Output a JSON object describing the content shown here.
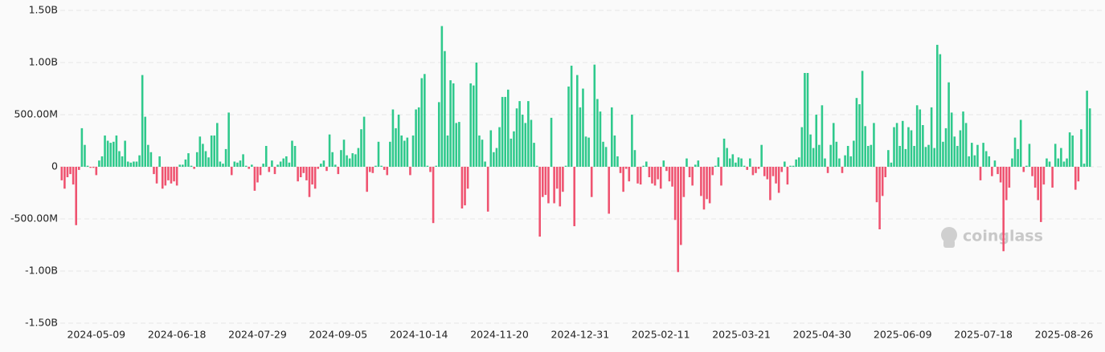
{
  "chart_data": {
    "type": "bar",
    "watermark": "coinglass",
    "positive_color": "#2fc98c",
    "negative_color": "#ef5370",
    "ylim": [
      -1500,
      1500
    ],
    "yticks": [
      {
        "value": -1500,
        "label": "-1.50B"
      },
      {
        "value": -1000,
        "label": "-1.00B"
      },
      {
        "value": -500,
        "label": "-500.00M"
      },
      0,
      {
        "value": 500,
        "label": "500.00M"
      },
      {
        "value": 1000,
        "label": "1.00B"
      },
      {
        "value": 1500,
        "label": "1.50B"
      }
    ],
    "grid": true,
    "categories": [
      null,
      null,
      null,
      null,
      null,
      null,
      null,
      null,
      null,
      null,
      null,
      null,
      "2024-05-09",
      null,
      null,
      null,
      null,
      null,
      null,
      null,
      null,
      null,
      null,
      null,
      null,
      null,
      null,
      null,
      null,
      null,
      null,
      null,
      null,
      null,
      null,
      null,
      null,
      null,
      null,
      null,
      "2024-06-18",
      null,
      null,
      null,
      null,
      null,
      null,
      null,
      null,
      null,
      null,
      null,
      null,
      null,
      null,
      null,
      null,
      null,
      null,
      null,
      null,
      null,
      null,
      null,
      null,
      null,
      null,
      null,
      "2024-07-29",
      null,
      null,
      null,
      null,
      null,
      null,
      null,
      null,
      null,
      null,
      null,
      null,
      null,
      null,
      null,
      null,
      null,
      null,
      null,
      null,
      null,
      null,
      null,
      null,
      null,
      null,
      null,
      "2024-09-05",
      null,
      null,
      null,
      null,
      null,
      null,
      null,
      null,
      null,
      null,
      null,
      null,
      null,
      null,
      null,
      null,
      null,
      null,
      null,
      null,
      null,
      null,
      null,
      null,
      null,
      null,
      null,
      "2024-10-14",
      null,
      null,
      null,
      null,
      null,
      null,
      null,
      null,
      null,
      null,
      null,
      null,
      null,
      null,
      null,
      null,
      null,
      null,
      null,
      null,
      null,
      null,
      null,
      null,
      null,
      null,
      null,
      "2024-11-20",
      null,
      null,
      null,
      null,
      null,
      null,
      null,
      null,
      null,
      null,
      null,
      null,
      null,
      null,
      null,
      null,
      null,
      null,
      null,
      null,
      null,
      null,
      null,
      null,
      null,
      null,
      null,
      "2024-12-31",
      null,
      null,
      null,
      null,
      null,
      null,
      null,
      null,
      null,
      null,
      null,
      null,
      null,
      null,
      null,
      null,
      null,
      null,
      null,
      null,
      null,
      null,
      null,
      null,
      null,
      null,
      null,
      "2025-02-11",
      null,
      null,
      null,
      null,
      null,
      null,
      null,
      null,
      null,
      null,
      null,
      null,
      null,
      null,
      null,
      null,
      null,
      null,
      null,
      null,
      null,
      null,
      null,
      null,
      null,
      null,
      null,
      "2025-03-21",
      null,
      null,
      null,
      null,
      null,
      null,
      null,
      null,
      null,
      null,
      null,
      null,
      null,
      null,
      null,
      null,
      null,
      null,
      null,
      null,
      null,
      null,
      null,
      null,
      null,
      null,
      null,
      "2025-04-30",
      null,
      null,
      null,
      null,
      null,
      null,
      null,
      null,
      null,
      null,
      null,
      null,
      null,
      null,
      null,
      null,
      null,
      null,
      null,
      null,
      null,
      null,
      null,
      null,
      null,
      null,
      null,
      "2025-06-09",
      null,
      null,
      null,
      null,
      null,
      null,
      null,
      null,
      null,
      null,
      null,
      null,
      null,
      null,
      null,
      null,
      null,
      null,
      null,
      null,
      null,
      null,
      null,
      null,
      null,
      null,
      null,
      "2025-07-18",
      null,
      null,
      null,
      null,
      null,
      null,
      null,
      null,
      null,
      null,
      null,
      null,
      null,
      null,
      null,
      null,
      null,
      null,
      null,
      null,
      null,
      null,
      null,
      null,
      null,
      null,
      null,
      "2025-08-26",
      null,
      null,
      null,
      null,
      null,
      null,
      null,
      null,
      null
    ],
    "values": [
      -130,
      -210,
      -100,
      -70,
      -170,
      -560,
      -30,
      370,
      210,
      10,
      -10,
      -10,
      -80,
      60,
      100,
      300,
      250,
      230,
      240,
      300,
      150,
      100,
      250,
      50,
      40,
      50,
      50,
      110,
      880,
      480,
      210,
      140,
      -70,
      -160,
      100,
      -210,
      -180,
      -130,
      -160,
      -140,
      -180,
      20,
      20,
      70,
      130,
      10,
      -20,
      140,
      290,
      220,
      150,
      90,
      300,
      300,
      420,
      50,
      30,
      170,
      520,
      -80,
      50,
      40,
      60,
      120,
      10,
      -20,
      20,
      -230,
      -150,
      -80,
      30,
      200,
      -50,
      60,
      -70,
      20,
      50,
      80,
      100,
      40,
      250,
      200,
      -140,
      -100,
      -60,
      -130,
      -290,
      -170,
      -210,
      -20,
      30,
      60,
      -40,
      310,
      140,
      20,
      -70,
      160,
      260,
      110,
      80,
      130,
      120,
      180,
      360,
      480,
      -240,
      -50,
      -60,
      10,
      240,
      10,
      -30,
      -80,
      240,
      550,
      370,
      500,
      300,
      250,
      280,
      -80,
      300,
      550,
      570,
      850,
      890,
      10,
      -50,
      -540,
      10,
      620,
      1350,
      1110,
      300,
      830,
      800,
      420,
      430,
      -400,
      -370,
      -210,
      800,
      780,
      1000,
      300,
      260,
      50,
      -430,
      350,
      140,
      180,
      380,
      670,
      670,
      740,
      270,
      340,
      560,
      630,
      500,
      420,
      630,
      450,
      230,
      10,
      -670,
      -290,
      -270,
      -350,
      470,
      -350,
      -210,
      -380,
      -240,
      10,
      770,
      970,
      -570,
      880,
      570,
      750,
      290,
      280,
      -290,
      980,
      650,
      530,
      240,
      190,
      -450,
      570,
      300,
      100,
      -60,
      -240,
      -20,
      -140,
      500,
      160,
      -160,
      -170,
      10,
      50,
      -100,
      -160,
      -180,
      -120,
      -210,
      60,
      -40,
      -140,
      -190,
      -510,
      -1010,
      -750,
      -290,
      80,
      -100,
      -180,
      20,
      60,
      -280,
      -410,
      -310,
      -350,
      -80,
      10,
      90,
      -180,
      270,
      180,
      80,
      120,
      40,
      90,
      80,
      10,
      -30,
      80,
      -80,
      -60,
      -20,
      210,
      -90,
      -120,
      -320,
      -90,
      -160,
      -250,
      -50,
      50,
      -170,
      10,
      10,
      70,
      90,
      380,
      900,
      900,
      310,
      180,
      500,
      210,
      590,
      80,
      -60,
      210,
      420,
      240,
      80,
      -60,
      110,
      200,
      100,
      250,
      660,
      600,
      920,
      390,
      200,
      210,
      420,
      -340,
      -600,
      -280,
      -100,
      160,
      40,
      380,
      420,
      200,
      440,
      170,
      380,
      350,
      200,
      590,
      550,
      400,
      190,
      210,
      570,
      180,
      1170,
      1080,
      240,
      370,
      810,
      520,
      290,
      200,
      350,
      530,
      420,
      100,
      230,
      110,
      210,
      -130,
      230,
      150,
      100,
      -90,
      60,
      -70,
      -150,
      -810,
      -320,
      -200,
      80,
      280,
      170,
      450,
      -50,
      10,
      220,
      -90,
      -200,
      -320,
      -530,
      -170,
      80,
      50,
      -200,
      220,
      80,
      180,
      50,
      80,
      330,
      300,
      -220,
      -140,
      360,
      30,
      730,
      560
    ]
  }
}
